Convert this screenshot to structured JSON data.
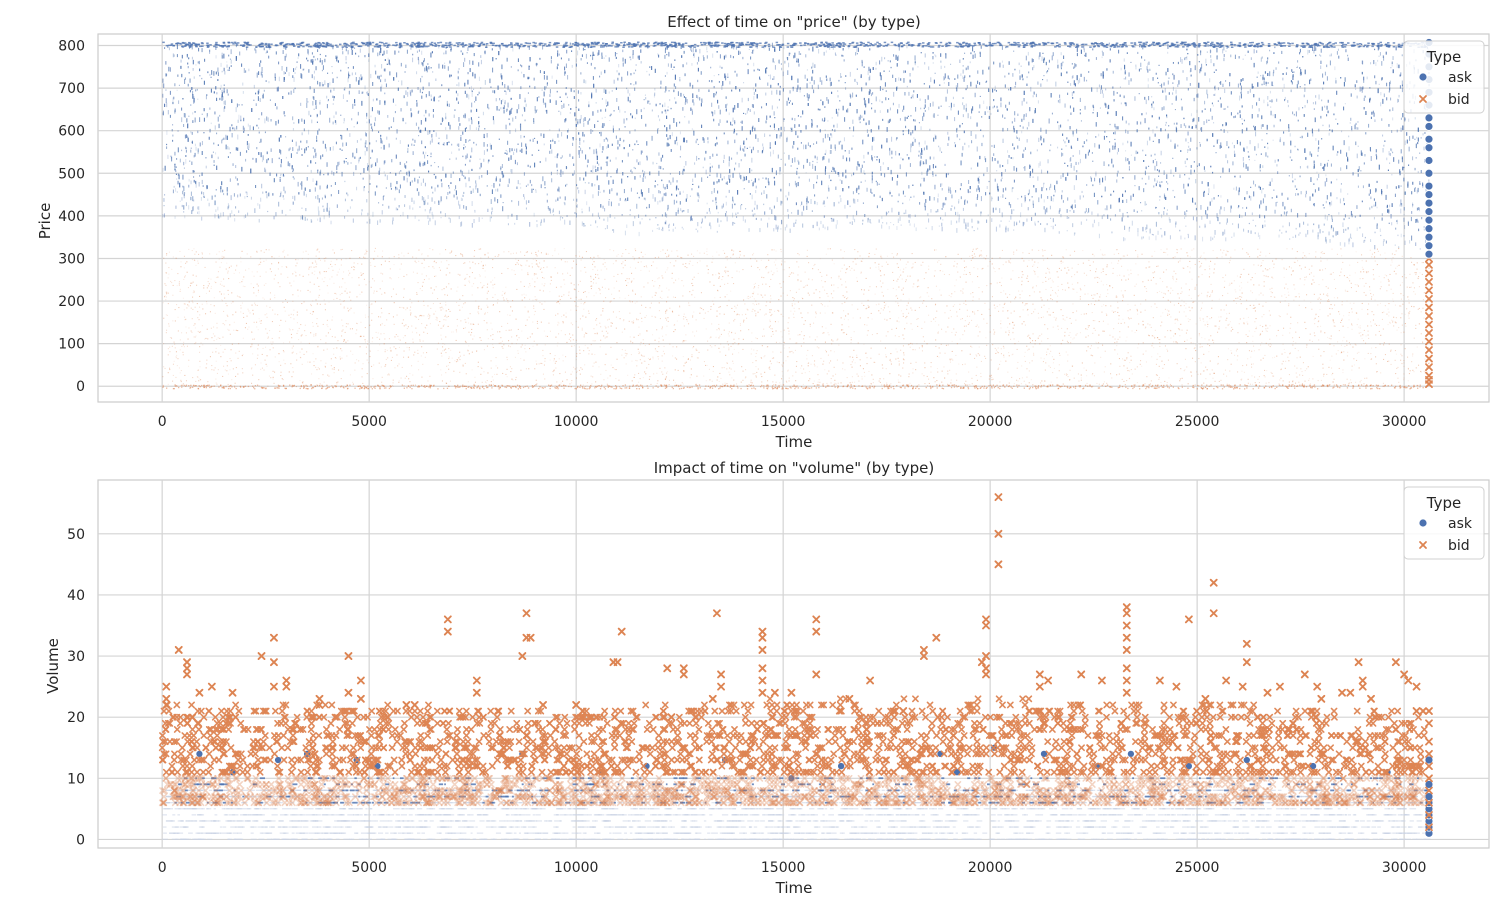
{
  "chart_data": [
    {
      "type": "scatter",
      "title": "Effect of time on \"price\" (by type)",
      "xlabel": "Time",
      "ylabel": "Price",
      "xlim": [
        -1550,
        32050
      ],
      "ylim": [
        -37,
        827
      ],
      "xticks": [
        0,
        5000,
        10000,
        15000,
        20000,
        25000,
        30000
      ],
      "xtick_labels": [
        "0",
        "5000",
        "10000",
        "15000",
        "20000",
        "25000",
        "30000"
      ],
      "yticks": [
        0,
        100,
        200,
        300,
        400,
        500,
        600,
        700,
        800
      ],
      "ytick_labels": [
        "0",
        "100",
        "200",
        "300",
        "400",
        "500",
        "600",
        "700",
        "800"
      ],
      "grid": true,
      "legend": {
        "title": "Type",
        "placement": "top-right"
      },
      "series": [
        {
          "name": "ask",
          "color": "#4c72b0",
          "marker": "circle",
          "x_range": [
            0,
            30600
          ],
          "y_range": [
            300,
            807
          ],
          "dense_lower_bound": [
            [
              0,
              395
            ],
            [
              5000,
              385
            ],
            [
              10000,
              380
            ],
            [
              11500,
              360
            ],
            [
              15000,
              365
            ],
            [
              17000,
              375
            ],
            [
              20000,
              365
            ],
            [
              22000,
              360
            ],
            [
              23500,
              345
            ],
            [
              26000,
              350
            ],
            [
              28000,
              340
            ],
            [
              30600,
              320
            ]
          ],
          "last_x": 30600,
          "last_values": [
            310,
            330,
            350,
            370,
            390,
            410,
            430,
            450,
            470,
            500,
            530,
            560,
            580,
            610,
            630,
            660,
            690,
            720,
            750,
            780,
            807
          ]
        },
        {
          "name": "bid",
          "color": "#dd8452",
          "marker": "x",
          "x_range": [
            0,
            30600
          ],
          "y_range": [
            0,
            325
          ],
          "last_x": 30600,
          "last_values": [
            5,
            15,
            25,
            45,
            65,
            85,
            105,
            125,
            145,
            165,
            185,
            205,
            225,
            245,
            265,
            285,
            300
          ]
        }
      ]
    },
    {
      "type": "scatter",
      "title": "Impact of time on \"volume\" (by type)",
      "xlabel": "Time",
      "ylabel": "Volume",
      "xlim": [
        -1550,
        32050
      ],
      "ylim": [
        -1.4,
        58.8
      ],
      "xticks": [
        0,
        5000,
        10000,
        15000,
        20000,
        25000,
        30000
      ],
      "xtick_labels": [
        "0",
        "5000",
        "10000",
        "15000",
        "20000",
        "25000",
        "30000"
      ],
      "yticks": [
        0,
        10,
        20,
        30,
        40,
        50
      ],
      "ytick_labels": [
        "0",
        "10",
        "20",
        "30",
        "40",
        "50"
      ],
      "grid": true,
      "legend": {
        "title": "Type",
        "placement": "top-right"
      },
      "series": [
        {
          "name": "ask",
          "color": "#4c72b0",
          "marker": "circle",
          "x_range": [
            0,
            30600
          ],
          "y_range": [
            1,
            15
          ],
          "points": [
            [
              900,
              14
            ],
            [
              1700,
              11
            ],
            [
              2800,
              13
            ],
            [
              3500,
              14
            ],
            [
              4700,
              13
            ],
            [
              5200,
              12
            ],
            [
              8700,
              14
            ],
            [
              10600,
              11
            ],
            [
              11700,
              12
            ],
            [
              13600,
              13
            ],
            [
              15200,
              10
            ],
            [
              16400,
              12
            ],
            [
              18800,
              14
            ],
            [
              19200,
              11
            ],
            [
              20100,
              15
            ],
            [
              21300,
              14
            ],
            [
              22600,
              12
            ],
            [
              23400,
              14
            ],
            [
              24800,
              12
            ],
            [
              26200,
              13
            ],
            [
              27800,
              12
            ],
            [
              29600,
              11
            ]
          ],
          "last_x": 30600,
          "last_values": [
            1,
            2,
            3,
            4,
            5,
            6,
            7,
            9,
            13
          ]
        },
        {
          "name": "bid",
          "color": "#dd8452",
          "marker": "x",
          "x_range": [
            0,
            30600
          ],
          "y_range": [
            1,
            56
          ],
          "outliers": [
            [
              20200,
              56
            ],
            [
              20200,
              50
            ],
            [
              20200,
              45
            ],
            [
              25400,
              42
            ],
            [
              25400,
              37
            ],
            [
              23300,
              38
            ],
            [
              23300,
              37
            ],
            [
              23300,
              35
            ],
            [
              23300,
              33
            ],
            [
              23300,
              31
            ],
            [
              23300,
              28
            ],
            [
              23300,
              26
            ],
            [
              23300,
              24
            ],
            [
              19900,
              36
            ],
            [
              19900,
              35
            ],
            [
              19900,
              30
            ],
            [
              8800,
              37
            ],
            [
              8800,
              33
            ],
            [
              8900,
              33
            ],
            [
              8700,
              30
            ],
            [
              13400,
              37
            ],
            [
              15800,
              36
            ],
            [
              15800,
              34
            ],
            [
              14500,
              34
            ],
            [
              14500,
              33
            ],
            [
              14500,
              31
            ],
            [
              14500,
              28
            ],
            [
              14500,
              26
            ],
            [
              14500,
              24
            ],
            [
              6900,
              36
            ],
            [
              6900,
              34
            ],
            [
              11100,
              34
            ],
            [
              24800,
              36
            ],
            [
              18700,
              33
            ],
            [
              2700,
              33
            ],
            [
              2700,
              29
            ],
            [
              2700,
              25
            ],
            [
              2400,
              30
            ],
            [
              4500,
              30
            ],
            [
              4500,
              24
            ],
            [
              26200,
              32
            ],
            [
              26200,
              29
            ],
            [
              400,
              31
            ],
            [
              18400,
              31
            ],
            [
              18400,
              30
            ],
            [
              28900,
              29
            ],
            [
              29800,
              29
            ],
            [
              10900,
              29
            ],
            [
              11000,
              29
            ],
            [
              12200,
              28
            ],
            [
              12600,
              28
            ],
            [
              12600,
              27
            ],
            [
              15800,
              27
            ],
            [
              3000,
              26
            ],
            [
              3000,
              25
            ],
            [
              4800,
              26
            ],
            [
              4800,
              23
            ],
            [
              600,
              29
            ],
            [
              600,
              28
            ],
            [
              600,
              27
            ],
            [
              100,
              25
            ],
            [
              100,
              23
            ],
            [
              100,
              22
            ],
            [
              3800,
              23
            ],
            [
              3800,
              22
            ],
            [
              7600,
              26
            ],
            [
              7600,
              24
            ],
            [
              17100,
              26
            ],
            [
              22700,
              26
            ],
            [
              24100,
              26
            ],
            [
              24500,
              25
            ],
            [
              27600,
              27
            ],
            [
              30000,
              27
            ],
            [
              30100,
              26
            ],
            [
              30300,
              25
            ],
            [
              19800,
              29
            ],
            [
              19900,
              28
            ],
            [
              19900,
              27
            ],
            [
              22200,
              27
            ],
            [
              21400,
              26
            ],
            [
              21200,
              27
            ],
            [
              21200,
              25
            ],
            [
              27900,
              25
            ],
            [
              28500,
              24
            ],
            [
              29000,
              26
            ],
            [
              29000,
              25
            ],
            [
              1200,
              25
            ],
            [
              900,
              24
            ],
            [
              1700,
              24
            ],
            [
              5900,
              22
            ],
            [
              6100,
              22
            ],
            [
              9200,
              22
            ],
            [
              10000,
              22
            ],
            [
              12300,
              20
            ],
            [
              13500,
              27
            ],
            [
              13500,
              25
            ],
            [
              13300,
              23
            ],
            [
              14800,
              24
            ],
            [
              15200,
              24
            ],
            [
              16600,
              23
            ],
            [
              17900,
              21
            ],
            [
              25200,
              23
            ],
            [
              25700,
              26
            ],
            [
              26100,
              25
            ],
            [
              26700,
              24
            ],
            [
              27000,
              25
            ],
            [
              28000,
              23
            ],
            [
              28700,
              24
            ],
            [
              29200,
              23
            ],
            [
              30300,
              21
            ]
          ],
          "dense_band": [
            [
              0,
              6,
              22
            ],
            [
              5000,
              6,
              22
            ],
            [
              10000,
              6,
              21
            ],
            [
              15000,
              6,
              23
            ],
            [
              20000,
              6,
              23
            ],
            [
              25000,
              6,
              22
            ],
            [
              30500,
              6,
              21
            ]
          ],
          "last_x": 30600,
          "last_values": [
            2,
            4,
            6,
            8,
            10,
            12,
            14,
            16,
            19,
            21
          ]
        }
      ]
    }
  ]
}
